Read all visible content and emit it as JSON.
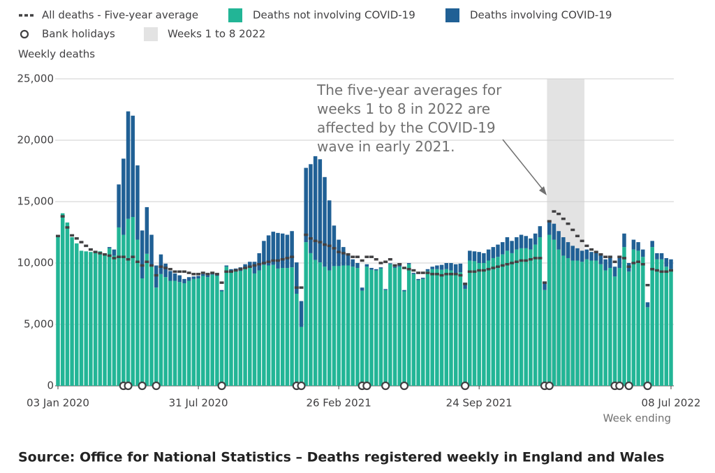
{
  "chart_data": {
    "type": "bar",
    "stacked": true,
    "y_label": "Weekly deaths",
    "x_label": "Week ending",
    "annotation": "The five-year averages for weeks 1 to 8 in 2022 are affected by the COVID-19 wave in early 2021.",
    "source": "Source: Office for National Statistics – Deaths registered weekly in England and Wales",
    "ylim": [
      0,
      25000
    ],
    "yticks": [
      0,
      {
        "value": 5000,
        "label": "5,000"
      },
      {
        "value": 10000,
        "label": "10,000"
      },
      {
        "value": 15000,
        "label": "15,000"
      },
      {
        "value": 20000,
        "label": "20,000"
      },
      {
        "value": 25000,
        "label": "25,000"
      }
    ],
    "grid": true,
    "highlight": {
      "name": "Weeks 1 to 8 2022",
      "color": "#e3e3e3",
      "from": 105,
      "to": 112
    },
    "categories": [
      "03 Jan 2020",
      null,
      null,
      null,
      null,
      null,
      null,
      null,
      null,
      null,
      null,
      null,
      null,
      null,
      null,
      null,
      null,
      null,
      null,
      null,
      null,
      null,
      null,
      null,
      null,
      null,
      null,
      null,
      null,
      null,
      "31 Jul 2020",
      null,
      null,
      null,
      null,
      null,
      null,
      null,
      null,
      null,
      null,
      null,
      null,
      null,
      null,
      null,
      null,
      null,
      null,
      null,
      null,
      null,
      null,
      null,
      null,
      null,
      null,
      null,
      null,
      null,
      "26 Feb 2021",
      null,
      null,
      null,
      null,
      null,
      null,
      null,
      null,
      null,
      null,
      null,
      null,
      null,
      null,
      null,
      null,
      null,
      null,
      null,
      null,
      null,
      null,
      null,
      null,
      null,
      null,
      null,
      null,
      null,
      "24 Sep 2021",
      null,
      null,
      null,
      null,
      null,
      null,
      null,
      null,
      null,
      null,
      null,
      null,
      null,
      null,
      null,
      null,
      null,
      null,
      null,
      null,
      null,
      null,
      null,
      null,
      null,
      null,
      null,
      null,
      null,
      null,
      null,
      null,
      null,
      null,
      null,
      null,
      null,
      null,
      null,
      null,
      "08 Jul 2022"
    ],
    "series": [
      {
        "name": "All deaths - Five-year average",
        "type": "line",
        "color": "#414042",
        "values": [
          12200,
          13800,
          12900,
          12250,
          12000,
          11700,
          11400,
          11100,
          10900,
          10800,
          10700,
          10600,
          10400,
          10500,
          10500,
          10300,
          10500,
          10100,
          9800,
          10100,
          9800,
          9000,
          9700,
          9600,
          9500,
          9300,
          9300,
          9300,
          9200,
          9100,
          9100,
          9200,
          9100,
          9200,
          9100,
          8400,
          9300,
          9300,
          9400,
          9500,
          9600,
          9700,
          9800,
          9900,
          10000,
          10100,
          10200,
          10200,
          10300,
          10400,
          10500,
          8000,
          8000,
          12300,
          12000,
          11800,
          11700,
          11500,
          11400,
          11200,
          10900,
          10800,
          10700,
          10500,
          10500,
          10200,
          10500,
          10500,
          10300,
          10000,
          10100,
          10300,
          9800,
          9900,
          9600,
          9500,
          9400,
          9200,
          9200,
          9200,
          9100,
          9100,
          9000,
          9100,
          9100,
          9100,
          9000,
          8300,
          9300,
          9300,
          9400,
          9400,
          9500,
          9600,
          9700,
          9800,
          9900,
          10000,
          10100,
          10200,
          10200,
          10300,
          10400,
          10400,
          8400,
          13400,
          14200,
          14000,
          13600,
          13200,
          12700,
          12200,
          11800,
          11400,
          11100,
          10900,
          10700,
          10500,
          10500,
          10100,
          10500,
          10400,
          9700,
          10000,
          10100,
          9900,
          8200,
          9500,
          9400,
          9300,
          9300,
          9400
        ]
      },
      {
        "name": "Deaths not involving COVID-19",
        "type": "bar",
        "color": "#22b596",
        "values": [
          12250,
          14050,
          13300,
          12100,
          11600,
          11000,
          10950,
          10900,
          10850,
          10950,
          10650,
          11200,
          10600,
          12900,
          12300,
          13600,
          13750,
          11900,
          8750,
          10750,
          9700,
          8000,
          9100,
          8850,
          8550,
          8550,
          8450,
          8350,
          8550,
          8700,
          8750,
          8950,
          8850,
          9050,
          8950,
          7700,
          9700,
          9350,
          9350,
          9350,
          9500,
          9600,
          9150,
          9400,
          9850,
          9800,
          9850,
          9550,
          9600,
          9600,
          9650,
          7500,
          4800,
          11700,
          10800,
          10250,
          10050,
          9700,
          9400,
          9750,
          9750,
          9800,
          9800,
          9700,
          9600,
          7750,
          9700,
          9450,
          9400,
          9550,
          7800,
          9900,
          9600,
          9700,
          7700,
          9900,
          9100,
          8600,
          8700,
          9350,
          9500,
          9500,
          9450,
          9500,
          9400,
          9200,
          9250,
          7900,
          10200,
          10150,
          10000,
          10000,
          10200,
          10400,
          10500,
          10700,
          11000,
          10800,
          11100,
          11200,
          11200,
          11100,
          11500,
          12100,
          7800,
          12300,
          11900,
          11100,
          10600,
          10400,
          10200,
          10200,
          10100,
          10300,
          10200,
          10200,
          9900,
          9400,
          9600,
          8900,
          9600,
          11300,
          9300,
          11100,
          11000,
          10500,
          6400,
          11300,
          10300,
          10300,
          9700,
          9500
        ]
      },
      {
        "name": "Deaths involving COVID-19",
        "type": "bar",
        "color": "#206095",
        "values": [
          0,
          0,
          0,
          0,
          0,
          0,
          0,
          0,
          0,
          0,
          0,
          100,
          500,
          3500,
          6200,
          8750,
          8250,
          6050,
          3900,
          3800,
          2600,
          1800,
          1600,
          1100,
          800,
          600,
          550,
          350,
          300,
          200,
          200,
          150,
          150,
          150,
          100,
          100,
          100,
          150,
          200,
          300,
          400,
          500,
          950,
          1400,
          1950,
          2450,
          2700,
          2900,
          2800,
          2700,
          2950,
          2550,
          2100,
          6050,
          7250,
          8450,
          8400,
          7300,
          5700,
          3300,
          2150,
          1500,
          1000,
          600,
          400,
          250,
          200,
          150,
          100,
          100,
          80,
          80,
          100,
          100,
          100,
          100,
          100,
          100,
          100,
          150,
          200,
          300,
          400,
          500,
          600,
          700,
          700,
          500,
          800,
          800,
          900,
          800,
          900,
          900,
          1000,
          1000,
          1100,
          1000,
          1000,
          1100,
          1000,
          900,
          900,
          900,
          700,
          1100,
          1300,
          1500,
          1500,
          1300,
          1200,
          1000,
          900,
          800,
          700,
          700,
          800,
          900,
          1000,
          800,
          1000,
          1100,
          700,
          800,
          700,
          600,
          400,
          500,
          500,
          500,
          700,
          800
        ]
      },
      {
        "name": "Bank holidays",
        "type": "marker",
        "color": "#414042",
        "values": [
          null,
          null,
          null,
          null,
          null,
          null,
          null,
          null,
          null,
          null,
          null,
          null,
          null,
          null,
          0,
          0,
          null,
          null,
          0,
          null,
          null,
          0,
          null,
          null,
          null,
          null,
          null,
          null,
          null,
          null,
          null,
          null,
          null,
          null,
          null,
          0,
          null,
          null,
          null,
          null,
          null,
          null,
          null,
          null,
          null,
          null,
          null,
          null,
          null,
          null,
          null,
          0,
          0,
          null,
          null,
          null,
          null,
          null,
          null,
          null,
          null,
          null,
          null,
          null,
          null,
          0,
          0,
          null,
          null,
          null,
          0,
          null,
          null,
          null,
          0,
          null,
          null,
          null,
          null,
          null,
          null,
          null,
          null,
          null,
          null,
          null,
          null,
          0,
          null,
          null,
          null,
          null,
          null,
          null,
          null,
          null,
          null,
          null,
          null,
          null,
          null,
          null,
          null,
          null,
          0,
          0,
          null,
          null,
          null,
          null,
          null,
          null,
          null,
          null,
          null,
          null,
          null,
          null,
          null,
          0,
          0,
          null,
          0,
          null,
          null,
          null,
          0,
          null,
          null,
          null,
          null,
          null
        ]
      }
    ]
  }
}
